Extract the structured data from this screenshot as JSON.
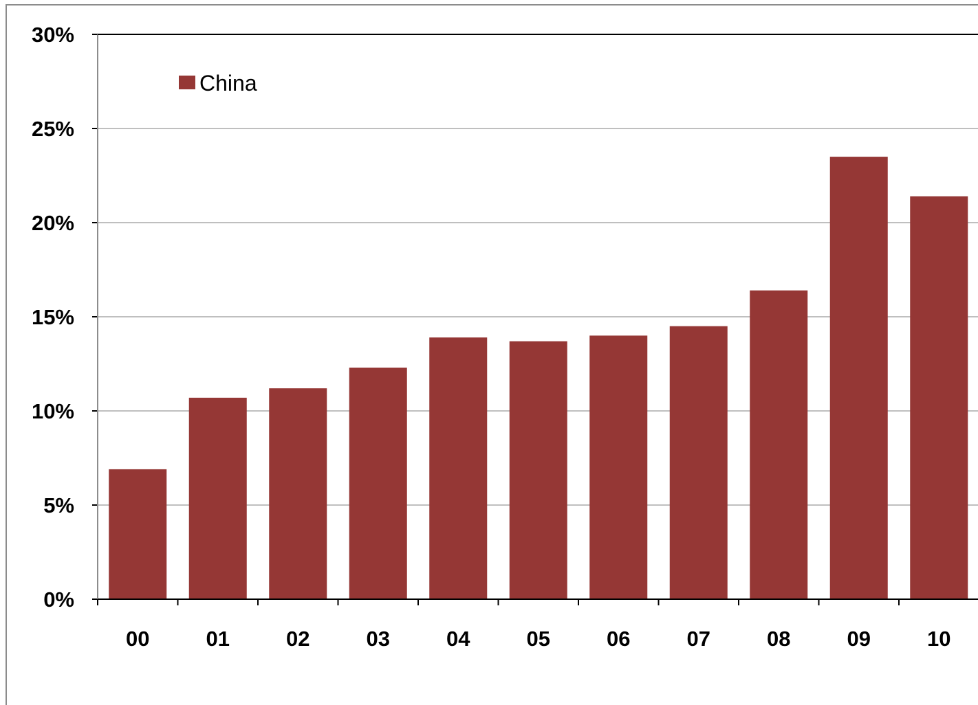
{
  "chart_data": {
    "type": "bar",
    "categories": [
      "00",
      "01",
      "02",
      "03",
      "04",
      "05",
      "06",
      "07",
      "08",
      "09",
      "10"
    ],
    "series": [
      {
        "name": "China",
        "values": [
          6.9,
          10.7,
          11.2,
          12.3,
          13.9,
          13.7,
          14.0,
          14.5,
          16.4,
          23.5,
          21.4
        ],
        "color": "#953735"
      }
    ],
    "y_ticks": [
      "0%",
      "5%",
      "10%",
      "15%",
      "20%",
      "25%",
      "30%"
    ],
    "ylim": [
      0,
      30
    ],
    "grid": true,
    "legend": {
      "position": "top-left",
      "label": "China"
    }
  }
}
